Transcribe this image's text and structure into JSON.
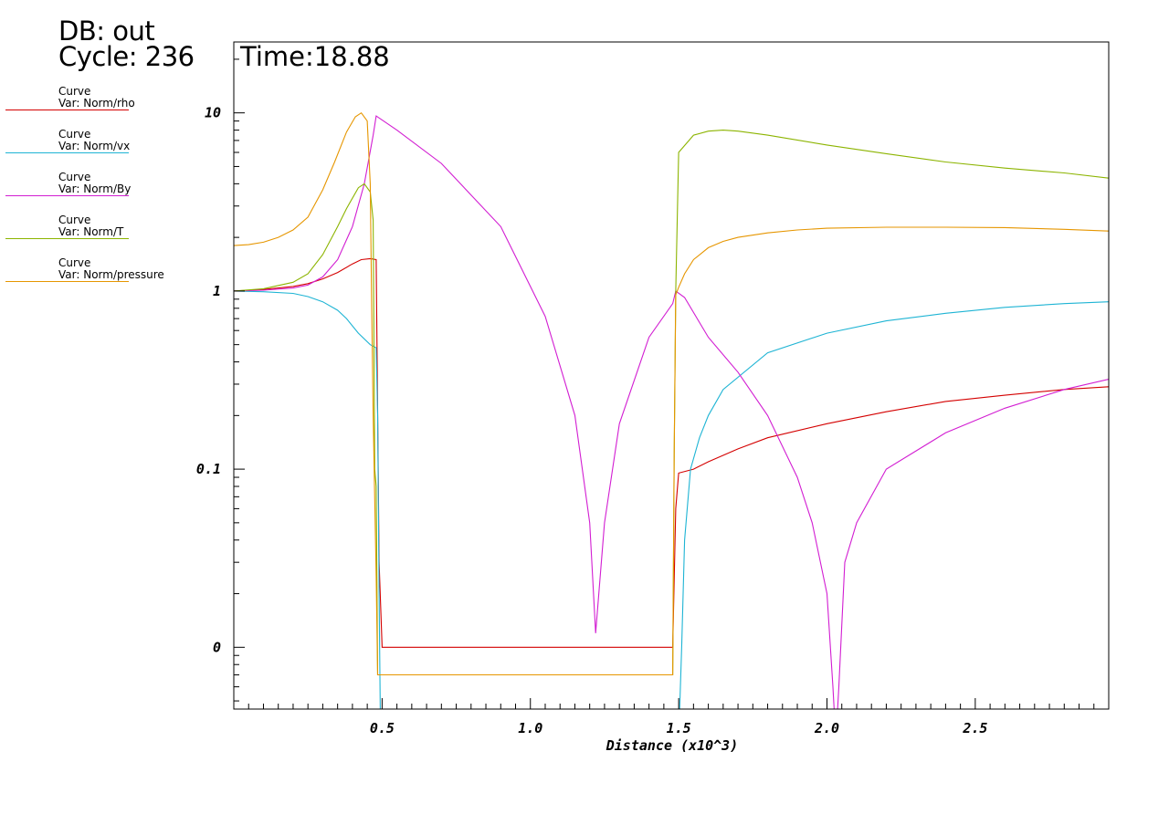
{
  "header": {
    "db": "DB: out",
    "cycle": "Cycle: 236",
    "time": "Time:18.88"
  },
  "legend": [
    {
      "title": "Curve",
      "var": "Var: Norm/rho",
      "color": "#d40000"
    },
    {
      "title": "Curve",
      "var": "Var: Norm/vx",
      "color": "#1eb4d4"
    },
    {
      "title": "Curve",
      "var": "Var: Norm/By",
      "color": "#d21ed2"
    },
    {
      "title": "Curve",
      "var": "Var: Norm/T",
      "color": "#8cb400"
    },
    {
      "title": "Curve",
      "var": "Var: Norm/pressure",
      "color": "#e69600"
    }
  ],
  "chart_data": {
    "type": "line",
    "xlabel": "Distance (x10^3)",
    "ylabel": "",
    "xlim": [
      0,
      2.95
    ],
    "y_scale": "log",
    "ylim": [
      0.0045,
      25
    ],
    "x_ticks": [
      {
        "value": 0.5,
        "label": "0.5"
      },
      {
        "value": 1.0,
        "label": "1.0"
      },
      {
        "value": 1.5,
        "label": "1.5"
      },
      {
        "value": 2.0,
        "label": "2.0"
      },
      {
        "value": 2.5,
        "label": "2.5"
      }
    ],
    "y_ticks": [
      {
        "value": 10,
        "label": "10"
      },
      {
        "value": 1,
        "label": "1"
      },
      {
        "value": 0.1,
        "label": "0.1"
      },
      {
        "value": 0.01,
        "label": "0"
      }
    ],
    "series": [
      {
        "name": "Var: Norm/rho",
        "color": "#d40000",
        "x": [
          0,
          0.1,
          0.2,
          0.25,
          0.3,
          0.35,
          0.4,
          0.43,
          0.46,
          0.48,
          0.49,
          0.5,
          0.6,
          0.8,
          1.0,
          1.2,
          1.4,
          1.48,
          1.49,
          1.5,
          1.55,
          1.6,
          1.7,
          1.8,
          2.0,
          2.2,
          2.4,
          2.6,
          2.8,
          2.95
        ],
        "y": [
          1.0,
          1.02,
          1.06,
          1.1,
          1.17,
          1.27,
          1.42,
          1.5,
          1.52,
          1.5,
          0.03,
          0.01,
          0.01,
          0.01,
          0.01,
          0.01,
          0.01,
          0.01,
          0.06,
          0.095,
          0.1,
          0.11,
          0.13,
          0.15,
          0.18,
          0.21,
          0.24,
          0.26,
          0.28,
          0.29
        ]
      },
      {
        "name": "Var: Norm/vx",
        "color": "#1eb4d4",
        "x": [
          0,
          0.1,
          0.2,
          0.25,
          0.3,
          0.35,
          0.38,
          0.42,
          0.46,
          0.48,
          0.485,
          0.49,
          0.495,
          1.5,
          1.51,
          1.52,
          1.54,
          1.57,
          1.6,
          1.65,
          1.8,
          2.0,
          2.2,
          2.4,
          2.6,
          2.8,
          2.95
        ],
        "y": [
          1.0,
          0.99,
          0.97,
          0.93,
          0.87,
          0.78,
          0.7,
          0.58,
          0.5,
          0.48,
          0.2,
          0.02,
          0.003,
          0.003,
          0.01,
          0.04,
          0.1,
          0.15,
          0.2,
          0.28,
          0.45,
          0.58,
          0.68,
          0.75,
          0.81,
          0.85,
          0.87
        ]
      },
      {
        "name": "Var: Norm/By",
        "color": "#d21ed2",
        "x": [
          0,
          0.1,
          0.2,
          0.25,
          0.3,
          0.35,
          0.4,
          0.44,
          0.47,
          0.48,
          0.55,
          0.7,
          0.9,
          1.05,
          1.15,
          1.2,
          1.22,
          1.25,
          1.3,
          1.4,
          1.48,
          1.49,
          1.52,
          1.6,
          1.7,
          1.8,
          1.9,
          1.95,
          2.0,
          2.02,
          2.03,
          2.04,
          2.06,
          2.1,
          2.2,
          2.4,
          2.6,
          2.8,
          2.95
        ],
        "y": [
          1.0,
          1.01,
          1.04,
          1.08,
          1.2,
          1.5,
          2.3,
          4.0,
          7.5,
          9.6,
          8.0,
          5.2,
          2.3,
          0.72,
          0.2,
          0.05,
          0.012,
          0.05,
          0.18,
          0.55,
          0.85,
          1.0,
          0.92,
          0.55,
          0.35,
          0.2,
          0.09,
          0.05,
          0.02,
          0.006,
          0.003,
          0.006,
          0.03,
          0.05,
          0.1,
          0.16,
          0.22,
          0.28,
          0.32
        ]
      },
      {
        "name": "Var: Norm/T",
        "color": "#8cb400",
        "x": [
          0,
          0.1,
          0.2,
          0.25,
          0.3,
          0.35,
          0.38,
          0.42,
          0.44,
          0.46,
          0.47,
          0.475,
          0.48,
          0.485,
          1.48,
          1.485,
          1.49,
          1.5,
          1.55,
          1.6,
          1.65,
          1.7,
          1.8,
          2.0,
          2.2,
          2.4,
          2.6,
          2.8,
          2.95
        ],
        "y": [
          1.0,
          1.03,
          1.12,
          1.25,
          1.6,
          2.3,
          2.9,
          3.8,
          4.0,
          3.6,
          2.5,
          0.1,
          0.08,
          0.007,
          0.007,
          0.12,
          1.0,
          6.0,
          7.5,
          7.9,
          8.0,
          7.9,
          7.5,
          6.6,
          5.9,
          5.3,
          4.9,
          4.6,
          4.3
        ]
      },
      {
        "name": "Var: Norm/pressure",
        "color": "#e69600",
        "x": [
          0,
          0.05,
          0.1,
          0.15,
          0.2,
          0.25,
          0.3,
          0.34,
          0.38,
          0.41,
          0.43,
          0.45,
          0.46,
          0.465,
          0.47,
          0.48,
          0.485,
          1.48,
          1.485,
          1.49,
          1.5,
          1.52,
          1.55,
          1.6,
          1.65,
          1.7,
          1.8,
          1.9,
          2.0,
          2.2,
          2.4,
          2.6,
          2.8,
          2.95
        ],
        "y": [
          1.8,
          1.82,
          1.88,
          2.0,
          2.2,
          2.6,
          3.7,
          5.3,
          7.8,
          9.5,
          10.0,
          9.0,
          4.0,
          0.8,
          0.2,
          0.025,
          0.007,
          0.007,
          0.12,
          0.95,
          1.05,
          1.25,
          1.5,
          1.75,
          1.9,
          2.0,
          2.12,
          2.2,
          2.25,
          2.28,
          2.28,
          2.27,
          2.22,
          2.17
        ]
      }
    ]
  }
}
